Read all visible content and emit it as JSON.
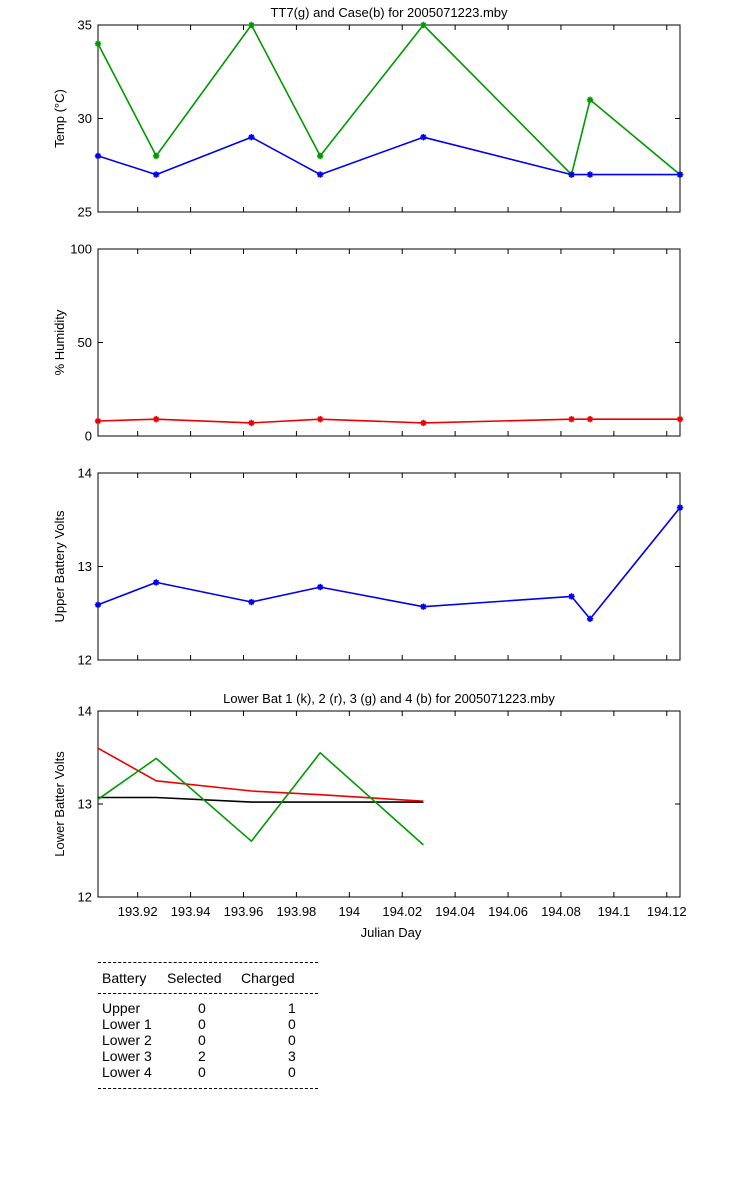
{
  "chart_data": [
    {
      "id": "temp",
      "type": "line",
      "title": "TT7(g) and Case(b) for 2005071223.mby",
      "ylabel": "Temp  (°C)",
      "xlabel": "",
      "ylim": [
        25,
        35
      ],
      "xlim": [
        193.905,
        194.125
      ],
      "y_ticks": [
        "25",
        "30",
        "35"
      ],
      "grid": false,
      "series": [
        {
          "key": "tt7",
          "color": "#009900",
          "marker": "*",
          "x": [
            193.905,
            193.927,
            193.963,
            193.989,
            194.028,
            194.084,
            194.091,
            194.125
          ],
          "y": [
            34,
            28,
            35,
            28,
            35,
            27,
            31,
            27
          ]
        },
        {
          "key": "case",
          "color": "#0000ee",
          "marker": "*",
          "x": [
            193.905,
            193.927,
            193.963,
            193.989,
            194.028,
            194.084,
            194.091,
            194.125
          ],
          "y": [
            28,
            27,
            29,
            27,
            29,
            27,
            27,
            27
          ]
        }
      ]
    },
    {
      "id": "humidity",
      "type": "line",
      "title": "",
      "ylabel": "% Humidity",
      "xlabel": "",
      "ylim": [
        0,
        100
      ],
      "xlim": [
        193.905,
        194.125
      ],
      "y_ticks": [
        "0",
        "50",
        "100"
      ],
      "grid": false,
      "series": [
        {
          "key": "humidity",
          "color": "#ee0000",
          "marker": "*",
          "x": [
            193.905,
            193.927,
            193.963,
            193.989,
            194.028,
            194.084,
            194.091,
            194.125
          ],
          "y": [
            8,
            9,
            7,
            9,
            7,
            9,
            9,
            9
          ]
        }
      ]
    },
    {
      "id": "upper_battery",
      "type": "line",
      "title": "",
      "ylabel": "Upper Battery Volts",
      "xlabel": "",
      "ylim": [
        12,
        14
      ],
      "xlim": [
        193.905,
        194.125
      ],
      "y_ticks": [
        "12",
        "13",
        "14"
      ],
      "grid": false,
      "series": [
        {
          "key": "upper",
          "color": "#0000ee",
          "marker": "*",
          "x": [
            193.905,
            193.927,
            193.963,
            193.989,
            194.028,
            194.084,
            194.091,
            194.125
          ],
          "y": [
            12.59,
            12.83,
            12.62,
            12.78,
            12.57,
            12.68,
            12.44,
            13.63
          ]
        }
      ]
    },
    {
      "id": "lower_battery",
      "type": "line",
      "title": "Lower Bat 1 (k), 2 (r), 3 (g) and 4 (b) for 2005071223.mby",
      "ylabel": "Lower Batter Volts",
      "xlabel": "Julian Day",
      "ylim": [
        12,
        14
      ],
      "xlim": [
        193.905,
        194.125
      ],
      "y_ticks": [
        "12",
        "13",
        "14"
      ],
      "x_ticks": [
        {
          "v": 193.92,
          "label": "193.92"
        },
        {
          "v": 193.94,
          "label": "193.94"
        },
        {
          "v": 193.96,
          "label": "193.96"
        },
        {
          "v": 193.98,
          "label": "193.98"
        },
        {
          "v": 194.0,
          "label": "194"
        },
        {
          "v": 194.02,
          "label": "194.02"
        },
        {
          "v": 194.04,
          "label": "194.04"
        },
        {
          "v": 194.06,
          "label": "194.06"
        },
        {
          "v": 194.08,
          "label": "194.08"
        },
        {
          "v": 194.1,
          "label": "194.1"
        },
        {
          "v": 194.12,
          "label": "194.12"
        }
      ],
      "grid": false,
      "series": [
        {
          "key": "lower1",
          "color": "#000000",
          "marker": "none",
          "x": [
            193.905,
            193.927,
            193.963,
            193.989,
            194.028
          ],
          "y": [
            13.07,
            13.07,
            13.02,
            13.02,
            13.02
          ]
        },
        {
          "key": "lower2",
          "color": "#ee0000",
          "marker": "none",
          "x": [
            193.905,
            193.927,
            193.963,
            193.989,
            194.028
          ],
          "y": [
            13.6,
            13.25,
            13.14,
            13.1,
            13.03
          ]
        },
        {
          "key": "lower3",
          "color": "#009900",
          "marker": "none",
          "x": [
            193.905,
            193.927,
            193.963,
            193.989,
            194.028
          ],
          "y": [
            13.05,
            13.49,
            12.6,
            13.55,
            12.56
          ]
        }
      ]
    }
  ],
  "battery_table": {
    "headers": [
      "Battery",
      "Selected",
      "Charged"
    ],
    "rows": [
      [
        "Upper",
        "0",
        "1"
      ],
      [
        "Lower 1",
        "0",
        "0"
      ],
      [
        "Lower 2",
        "0",
        "0"
      ],
      [
        "Lower 3",
        "2",
        "3"
      ],
      [
        "Lower 4",
        "0",
        "0"
      ]
    ]
  }
}
